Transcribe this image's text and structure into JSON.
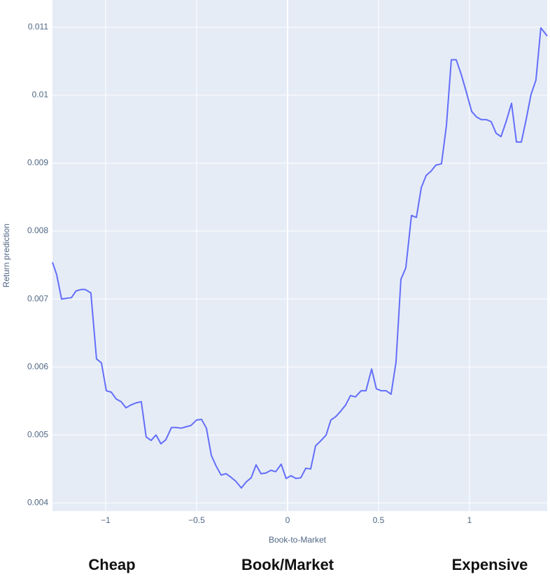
{
  "chart_data": {
    "type": "line",
    "x_label": "Book-to-Market",
    "y_label": "Return prediction",
    "annotations": [
      "Cheap",
      "Book/Market",
      "Expensive"
    ],
    "xlim": [
      -1.292,
      1.427
    ],
    "ylim": [
      0.00388,
      0.0114
    ],
    "xticks": [
      {
        "value": -1,
        "label": "−1"
      },
      {
        "value": -0.5,
        "label": "−0.5"
      },
      0,
      0.5,
      1
    ],
    "yticks": [
      0.004,
      0.005,
      0.006,
      0.007,
      0.008,
      0.009,
      0.01,
      0.011
    ],
    "grid": true,
    "zeroline": true,
    "x": [
      -1.292,
      -1.269,
      -1.242,
      -1.215,
      -1.188,
      -1.162,
      -1.135,
      -1.112,
      -1.081,
      -1.05,
      -1.023,
      -0.996,
      -0.969,
      -0.942,
      -0.915,
      -0.888,
      -0.862,
      -0.835,
      -0.804,
      -0.777,
      -0.75,
      -0.723,
      -0.696,
      -0.669,
      -0.638,
      -0.612,
      -0.585,
      -0.558,
      -0.531,
      -0.5,
      -0.473,
      -0.446,
      -0.419,
      -0.392,
      -0.365,
      -0.338,
      -0.312,
      -0.285,
      -0.254,
      -0.227,
      -0.2,
      -0.173,
      -0.146,
      -0.119,
      -0.092,
      -0.065,
      -0.035,
      -0.008,
      0.019,
      0.046,
      0.073,
      0.1,
      0.127,
      0.154,
      0.181,
      0.212,
      0.238,
      0.265,
      0.292,
      0.319,
      0.346,
      0.373,
      0.404,
      0.431,
      0.462,
      0.488,
      0.515,
      0.542,
      0.569,
      0.596,
      0.623,
      0.65,
      0.681,
      0.708,
      0.735,
      0.762,
      0.788,
      0.815,
      0.846,
      0.873,
      0.9,
      0.927,
      0.954,
      0.981,
      1.012,
      1.038,
      1.065,
      1.092,
      1.119,
      1.146,
      1.173,
      1.2,
      1.231,
      1.258,
      1.285,
      1.312,
      1.338,
      1.365,
      1.392,
      1.427
    ],
    "series": [
      {
        "color": "#636efa",
        "values": [
          0.00754,
          0.00736,
          0.007,
          0.00701,
          0.00702,
          0.00712,
          0.00714,
          0.00714,
          0.00709,
          0.00612,
          0.00606,
          0.00565,
          0.00563,
          0.00553,
          0.00549,
          0.0054,
          0.00544,
          0.00547,
          0.00549,
          0.00497,
          0.00492,
          0.005,
          0.00487,
          0.00493,
          0.00511,
          0.00511,
          0.0051,
          0.00512,
          0.00514,
          0.00522,
          0.00523,
          0.0051,
          0.0047,
          0.00454,
          0.00441,
          0.00443,
          0.00438,
          0.00432,
          0.00422,
          0.00431,
          0.00437,
          0.00456,
          0.00443,
          0.00444,
          0.00448,
          0.00446,
          0.00457,
          0.00436,
          0.0044,
          0.00436,
          0.00437,
          0.00451,
          0.0045,
          0.00484,
          0.00491,
          0.005,
          0.00522,
          0.00527,
          0.00535,
          0.00544,
          0.00558,
          0.00556,
          0.00565,
          0.00565,
          0.00597,
          0.00568,
          0.00565,
          0.00565,
          0.0056,
          0.00607,
          0.00729,
          0.00746,
          0.00823,
          0.0082,
          0.00864,
          0.00882,
          0.00888,
          0.00897,
          0.00899,
          0.00955,
          0.01052,
          0.01052,
          0.01031,
          0.01006,
          0.00976,
          0.00968,
          0.00964,
          0.00964,
          0.00961,
          0.00944,
          0.00939,
          0.0096,
          0.00988,
          0.00931,
          0.00931,
          0.00965,
          0.01001,
          0.01022,
          0.01099,
          0.01087
        ]
      }
    ]
  }
}
